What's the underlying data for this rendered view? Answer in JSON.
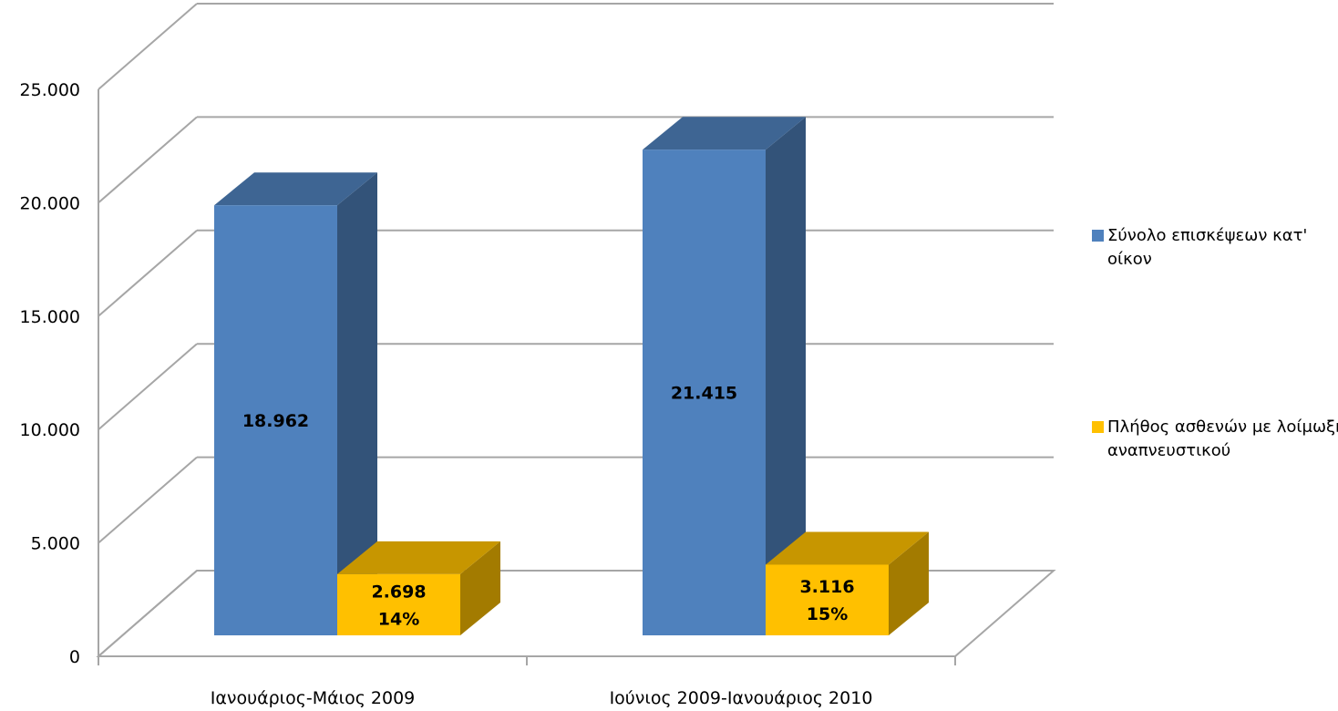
{
  "chart_data": {
    "type": "bar",
    "categories": [
      "Ιανουάριος-Μάιος 2009",
      "Ιούνιος 2009-Ιανουάριος 2010"
    ],
    "series": [
      {
        "name": "Σύνολο επισκέψεων κατ' οίκον",
        "values": [
          18962,
          21415
        ],
        "color": "#4f81bd",
        "labels": [
          [
            "18.962"
          ],
          [
            "21.415"
          ]
        ]
      },
      {
        "name": "Πλήθος ασθενών με λοίμωξη αναπνευστικού",
        "values": [
          2698,
          3116
        ],
        "color": "#ffc000",
        "labels": [
          [
            "2.698",
            "14%"
          ],
          [
            "3.116",
            "15%"
          ]
        ]
      }
    ],
    "y_ticks": [
      "0",
      "5.000",
      "10.000",
      "15.000",
      "20.000",
      "25.000"
    ],
    "ylim": [
      0,
      25000
    ],
    "grid": true,
    "three_d": true,
    "legend_position": "right"
  }
}
